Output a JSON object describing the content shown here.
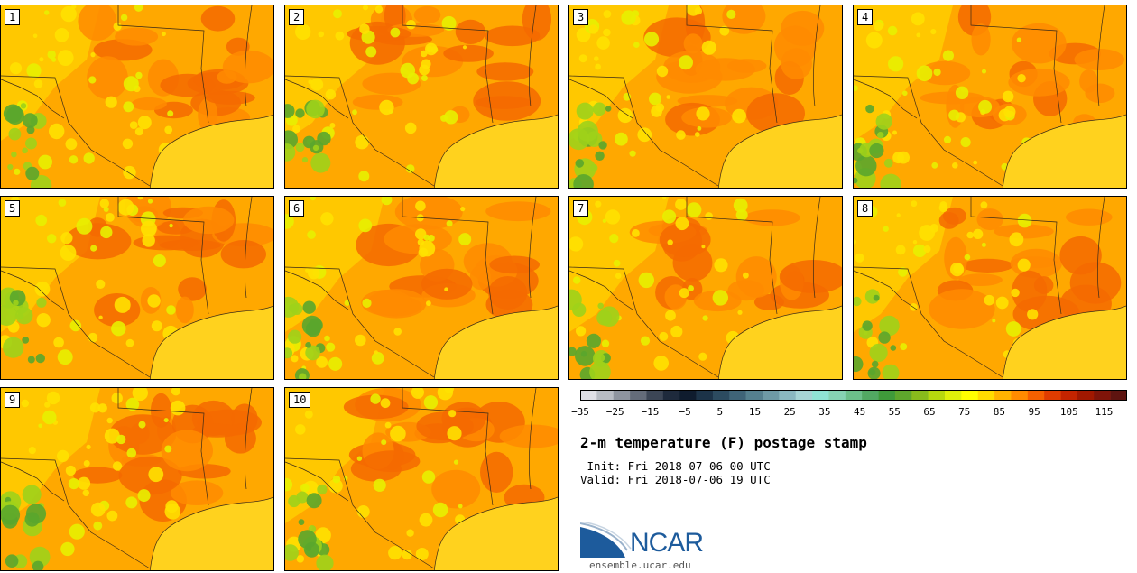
{
  "panels": [
    {
      "label": "1",
      "seed": 11
    },
    {
      "label": "2",
      "seed": 22
    },
    {
      "label": "3",
      "seed": 33
    },
    {
      "label": "4",
      "seed": 44
    },
    {
      "label": "5",
      "seed": 55
    },
    {
      "label": "6",
      "seed": 66
    },
    {
      "label": "7",
      "seed": 77
    },
    {
      "label": "8",
      "seed": 88
    },
    {
      "label": "9",
      "seed": 99
    },
    {
      "label": "10",
      "seed": 111
    }
  ],
  "colorbar": {
    "colors": [
      "#dfdfe6",
      "#b8bcc4",
      "#8e949f",
      "#646c7a",
      "#3c4656",
      "#1e2a3c",
      "#0f1c2e",
      "#1c3348",
      "#2c4b60",
      "#3f6478",
      "#55808f",
      "#6e9aa6",
      "#8ab8c0",
      "#a6d4d4",
      "#8fe3d4",
      "#86d3b3",
      "#6cbf8a",
      "#52a863",
      "#3f9a3a",
      "#5ea62c",
      "#88bb1c",
      "#b7d80e",
      "#dff00a",
      "#ffff00",
      "#ffdc00",
      "#ffb200",
      "#ff8b00",
      "#f56000",
      "#e03c00",
      "#c42400",
      "#a11800",
      "#7f1409",
      "#5e1410"
    ],
    "ticks": [
      "−35",
      "−25",
      "−15",
      "−5",
      "5",
      "15",
      "25",
      "35",
      "45",
      "55",
      "65",
      "75",
      "85",
      "95",
      "105",
      "115"
    ]
  },
  "title": "2-m temperature (F) postage stamp",
  "init": " Init: Fri 2018-07-06 00 UTC",
  "valid": "Valid: Fri 2018-07-06 19 UTC",
  "logo": {
    "text": "NCAR",
    "url": "ensemble.ucar.edu",
    "brand_color": "#1d5b9c"
  },
  "map_colors": {
    "gulf": "#ffd21e",
    "base": "#ffa800",
    "hot": "#ff8b00",
    "hotter": "#f56a00",
    "cool": "#ffe100",
    "cooler": "#e8f000",
    "green": "#9ed21a",
    "dark_green": "#5aa62c",
    "border": "#3a2a18"
  }
}
